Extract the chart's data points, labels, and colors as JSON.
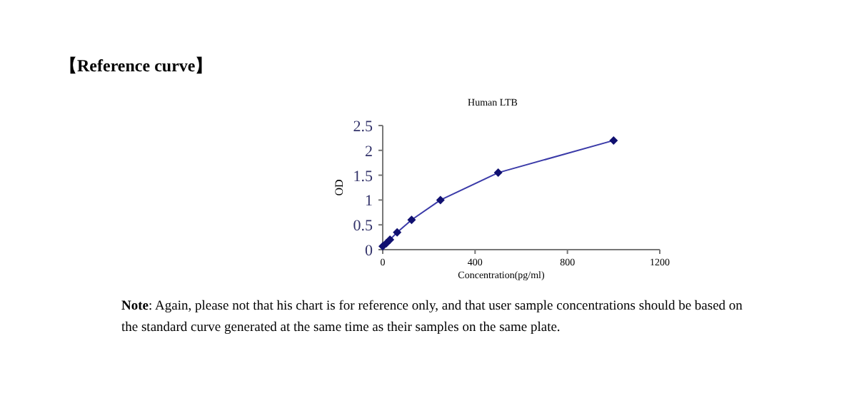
{
  "chart_data": {
    "type": "line",
    "title": "Human LTB",
    "subtitle": "【Reference curve】",
    "xlabel": "Concentration(pg/ml)",
    "ylabel": "OD",
    "series": [
      {
        "color": "#3a3aa8",
        "x": [
          0,
          15.6,
          31.25,
          62.5,
          125,
          250,
          500,
          1000
        ],
        "values": [
          0.07,
          0.13,
          0.2,
          0.35,
          0.6,
          1.0,
          1.55,
          2.2
        ]
      }
    ],
    "xlim": [
      0,
      1200
    ],
    "xticks": [
      0,
      400,
      800,
      1200
    ],
    "ylim": [
      0,
      2.5
    ],
    "yticks": [
      0,
      0.5,
      1,
      1.5,
      2,
      2.5
    ],
    "marker": "diamond",
    "line_style": "solid",
    "annotations": [
      "**Note**: Again, please not that his chart is for reference only, and that user sample concentrations should be based on the standard curve generated at the same time as their samples on the same plate."
    ]
  }
}
